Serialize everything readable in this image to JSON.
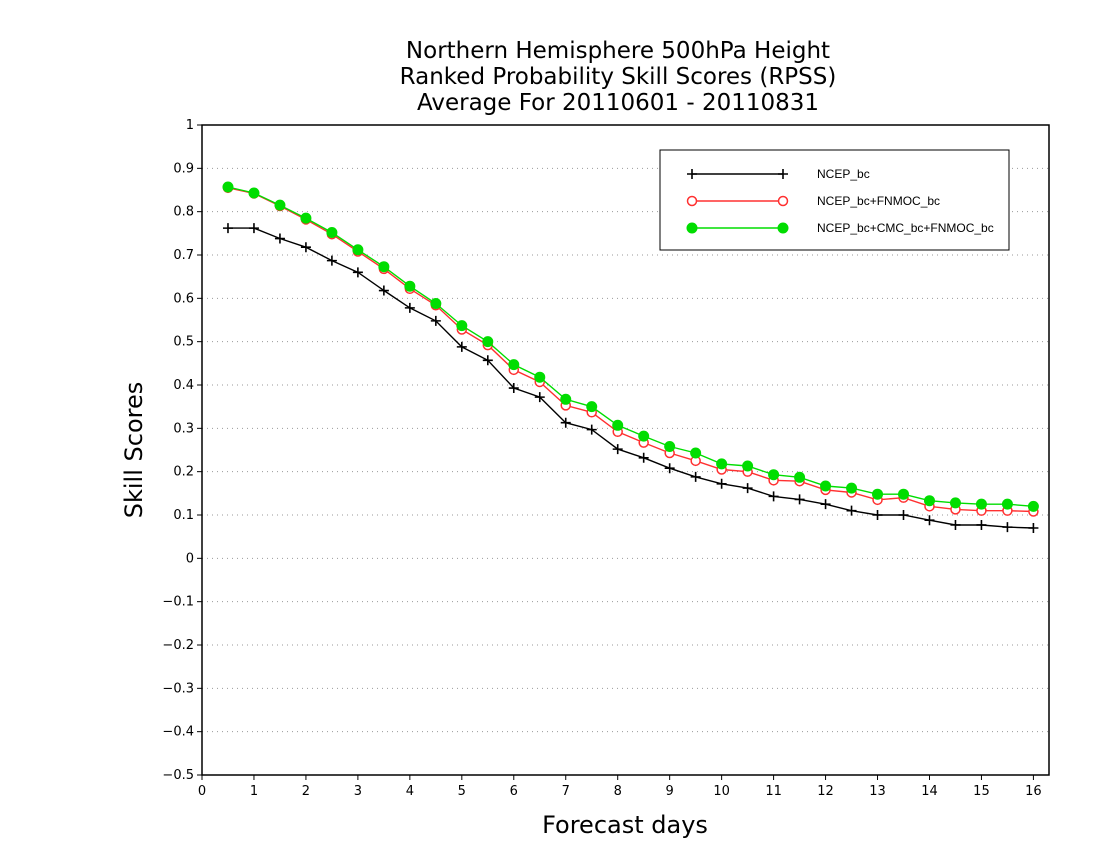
{
  "chart_data": {
    "type": "line",
    "title_lines": [
      "Northern Hemisphere 500hPa Height",
      "Ranked Probability Skill Scores (RPSS)",
      "Average For 20110601 - 20110831"
    ],
    "xlabel": "Forecast days",
    "ylabel": "Skill Scores",
    "xlim": [
      0,
      16.3
    ],
    "ylim": [
      -0.5,
      1.0
    ],
    "xticks": [
      0,
      1,
      2,
      3,
      4,
      5,
      6,
      7,
      8,
      9,
      10,
      11,
      12,
      13,
      14,
      15,
      16
    ],
    "xtick_labels": [
      "0",
      "1",
      "2",
      "3",
      "4",
      "5",
      "6",
      "7",
      "8",
      "9",
      "10",
      "11",
      "12",
      "13",
      "14",
      "15",
      "16"
    ],
    "yticks": [
      -0.5,
      -0.4,
      -0.3,
      -0.2,
      -0.1,
      0,
      0.1,
      0.2,
      0.3,
      0.4,
      0.5,
      0.6,
      0.7,
      0.8,
      0.9,
      1.0
    ],
    "ytick_labels": [
      "−0.5",
      "−0.4",
      "−0.3",
      "−0.2",
      "−0.1",
      "0",
      "0.1",
      "0.2",
      "0.3",
      "0.4",
      "0.5",
      "0.6",
      "0.7",
      "0.8",
      "0.9",
      "1"
    ],
    "grid": "horizontal dotted",
    "legend_position": "top-right",
    "x": [
      0.5,
      1,
      1.5,
      2,
      2.5,
      3,
      3.5,
      4,
      4.5,
      5,
      5.5,
      6,
      6.5,
      7,
      7.5,
      8,
      8.5,
      9,
      9.5,
      10,
      10.5,
      11,
      11.5,
      12,
      12.5,
      13,
      13.5,
      14,
      14.5,
      15,
      15.5,
      16
    ],
    "series": [
      {
        "name": "NCEP_bc",
        "color": "#000000",
        "marker": "plus",
        "values": [
          0.762,
          0.762,
          0.738,
          0.718,
          0.687,
          0.66,
          0.618,
          0.578,
          0.548,
          0.488,
          0.457,
          0.393,
          0.372,
          0.313,
          0.297,
          0.252,
          0.232,
          0.208,
          0.188,
          0.172,
          0.162,
          0.143,
          0.136,
          0.125,
          0.11,
          0.1,
          0.1,
          0.088,
          0.077,
          0.077,
          0.072,
          0.07
        ]
      },
      {
        "name": "NCEP_bc+FNMOC_bc",
        "color": "#ff3030",
        "marker": "open-circle",
        "values": [
          0.855,
          0.842,
          0.813,
          0.782,
          0.748,
          0.708,
          0.668,
          0.622,
          0.584,
          0.528,
          0.492,
          0.435,
          0.407,
          0.353,
          0.337,
          0.292,
          0.267,
          0.243,
          0.225,
          0.205,
          0.2,
          0.18,
          0.178,
          0.158,
          0.152,
          0.135,
          0.14,
          0.12,
          0.113,
          0.11,
          0.11,
          0.108
        ]
      },
      {
        "name": "NCEP_bc+CMC_bc+FNMOC_bc",
        "color": "#00dd00",
        "marker": "filled-circle",
        "values": [
          0.857,
          0.843,
          0.815,
          0.785,
          0.752,
          0.712,
          0.673,
          0.628,
          0.588,
          0.537,
          0.5,
          0.447,
          0.418,
          0.367,
          0.35,
          0.307,
          0.282,
          0.258,
          0.243,
          0.218,
          0.213,
          0.193,
          0.187,
          0.167,
          0.162,
          0.148,
          0.148,
          0.133,
          0.128,
          0.125,
          0.125,
          0.12
        ]
      }
    ]
  }
}
